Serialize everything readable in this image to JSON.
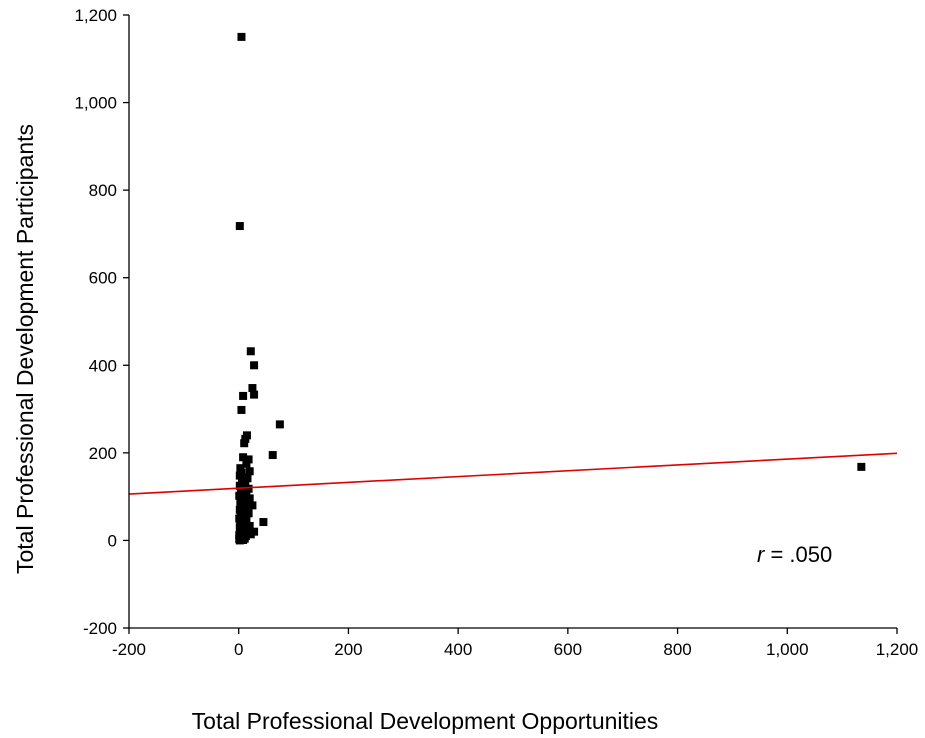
{
  "chart_data": {
    "type": "scatter",
    "xlabel": "Total Professional Development Opportunities",
    "ylabel": "Total Professional Development Participants",
    "xlim": [
      -200,
      1200
    ],
    "ylim": [
      -200,
      1200
    ],
    "x_ticks": [
      -200,
      0,
      200,
      400,
      600,
      800,
      1000,
      1200
    ],
    "y_ticks": [
      -200,
      0,
      200,
      400,
      600,
      800,
      1000,
      1200
    ],
    "x_tick_labels": [
      "-200",
      "0",
      "200",
      "400",
      "600",
      "800",
      "1,000",
      "1,200"
    ],
    "y_tick_labels": [
      "-200",
      "0",
      "200",
      "400",
      "600",
      "800",
      "1,000",
      "1,200"
    ],
    "grid": false,
    "marker_color": "#000000",
    "fit_line_color": "#e00000",
    "annotation": {
      "var": "r",
      "text": " = .050"
    },
    "fit_line": {
      "x": [
        -200,
        1200
      ],
      "y": [
        106,
        199
      ]
    },
    "points": [
      {
        "x": 5,
        "y": 1150
      },
      {
        "x": 2,
        "y": 718
      },
      {
        "x": 22,
        "y": 432
      },
      {
        "x": 28,
        "y": 400
      },
      {
        "x": 25,
        "y": 348
      },
      {
        "x": 28,
        "y": 333
      },
      {
        "x": 8,
        "y": 330
      },
      {
        "x": 5,
        "y": 298
      },
      {
        "x": 75,
        "y": 265
      },
      {
        "x": 15,
        "y": 240
      },
      {
        "x": 12,
        "y": 232
      },
      {
        "x": 10,
        "y": 222
      },
      {
        "x": 62,
        "y": 195
      },
      {
        "x": 8,
        "y": 190
      },
      {
        "x": 18,
        "y": 185
      },
      {
        "x": 3,
        "y": 165
      },
      {
        "x": 14,
        "y": 175
      },
      {
        "x": 5,
        "y": 155
      },
      {
        "x": 20,
        "y": 158
      },
      {
        "x": 2,
        "y": 148
      },
      {
        "x": 10,
        "y": 145
      },
      {
        "x": 16,
        "y": 142
      },
      {
        "x": 6,
        "y": 135
      },
      {
        "x": 12,
        "y": 130
      },
      {
        "x": 2,
        "y": 125
      },
      {
        "x": 8,
        "y": 120
      },
      {
        "x": 18,
        "y": 118
      },
      {
        "x": 4,
        "y": 112
      },
      {
        "x": 14,
        "y": 108
      },
      {
        "x": 1,
        "y": 102
      },
      {
        "x": 10,
        "y": 98
      },
      {
        "x": 20,
        "y": 96
      },
      {
        "x": 6,
        "y": 92
      },
      {
        "x": 3,
        "y": 88
      },
      {
        "x": 15,
        "y": 85
      },
      {
        "x": 25,
        "y": 80
      },
      {
        "x": 8,
        "y": 78
      },
      {
        "x": 12,
        "y": 74
      },
      {
        "x": 2,
        "y": 70
      },
      {
        "x": 5,
        "y": 65
      },
      {
        "x": 18,
        "y": 62
      },
      {
        "x": 10,
        "y": 58
      },
      {
        "x": 4,
        "y": 54
      },
      {
        "x": 1,
        "y": 50
      },
      {
        "x": 14,
        "y": 48
      },
      {
        "x": 7,
        "y": 45
      },
      {
        "x": 45,
        "y": 42
      },
      {
        "x": 3,
        "y": 40
      },
      {
        "x": 11,
        "y": 37
      },
      {
        "x": 20,
        "y": 33
      },
      {
        "x": 2,
        "y": 30
      },
      {
        "x": 6,
        "y": 28
      },
      {
        "x": 16,
        "y": 24
      },
      {
        "x": 28,
        "y": 20
      },
      {
        "x": 4,
        "y": 18
      },
      {
        "x": 9,
        "y": 15
      },
      {
        "x": 1,
        "y": 12
      },
      {
        "x": 13,
        "y": 10
      },
      {
        "x": 22,
        "y": 14
      },
      {
        "x": 3,
        "y": 7
      },
      {
        "x": 7,
        "y": 5
      },
      {
        "x": 1,
        "y": 3
      },
      {
        "x": 5,
        "y": 2
      },
      {
        "x": 11,
        "y": 4
      },
      {
        "x": 2,
        "y": 0
      },
      {
        "x": 8,
        "y": 1
      },
      {
        "x": 1135,
        "y": 168
      }
    ]
  }
}
